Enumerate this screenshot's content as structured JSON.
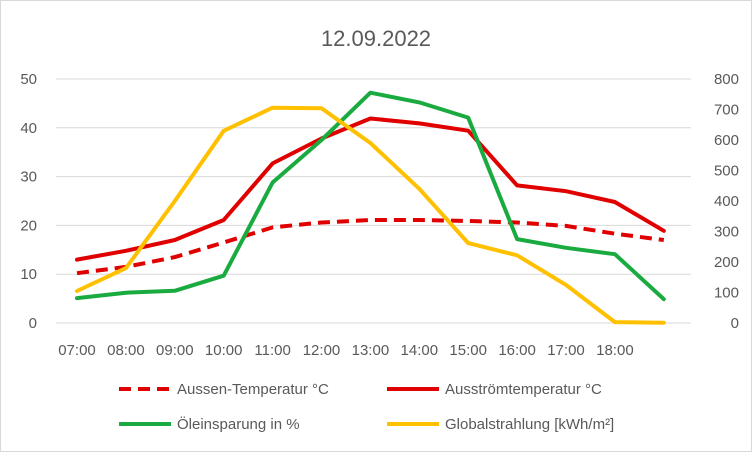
{
  "chart_data": {
    "type": "line",
    "title": "12.09.2022",
    "categories": [
      "07:00",
      "08:00",
      "09:00",
      "10:00",
      "11:00",
      "12:00",
      "13:00",
      "14:00",
      "15:00",
      "16:00",
      "17:00",
      "18:00",
      ""
    ],
    "y_left": {
      "min": 0,
      "max": 50,
      "step": 10,
      "ticks": [
        "0",
        "10",
        "20",
        "30",
        "40",
        "50"
      ]
    },
    "y_right": {
      "min": 0,
      "max": 800,
      "step": 100,
      "ticks": [
        "0",
        "100",
        "200",
        "300",
        "400",
        "500",
        "600",
        "700",
        "800"
      ]
    },
    "grid": true,
    "legend_position": "bottom",
    "series": [
      {
        "name": "Aussen-Temperatur °C",
        "axis": "left",
        "color": "#e00000",
        "dash": true,
        "values": [
          10.2,
          11.5,
          13.5,
          16.5,
          19.6,
          20.6,
          21.1,
          21.1,
          20.9,
          20.6,
          19.9,
          18.3,
          17.0
        ]
      },
      {
        "name": "Ausströmtemperatur °C",
        "axis": "left",
        "color": "#e00000",
        "dash": false,
        "values": [
          13.0,
          14.8,
          17.0,
          21.1,
          32.7,
          37.8,
          41.9,
          40.9,
          39.4,
          28.2,
          27.0,
          24.8,
          18.9
        ]
      },
      {
        "name": "Öleinsparung in %",
        "axis": "left",
        "color": "#1aab40",
        "dash": false,
        "values": [
          5.1,
          6.2,
          6.6,
          9.7,
          28.8,
          37.5,
          47.2,
          45.2,
          42.1,
          17.2,
          15.4,
          14.1,
          4.9
        ]
      },
      {
        "name": "Globalstrahlung [kWh/m²]",
        "axis": "right",
        "color": "#ffc000",
        "dash": false,
        "values": [
          105,
          180,
          400,
          630,
          706,
          704,
          590,
          440,
          262,
          222,
          125,
          3,
          1
        ]
      }
    ]
  }
}
